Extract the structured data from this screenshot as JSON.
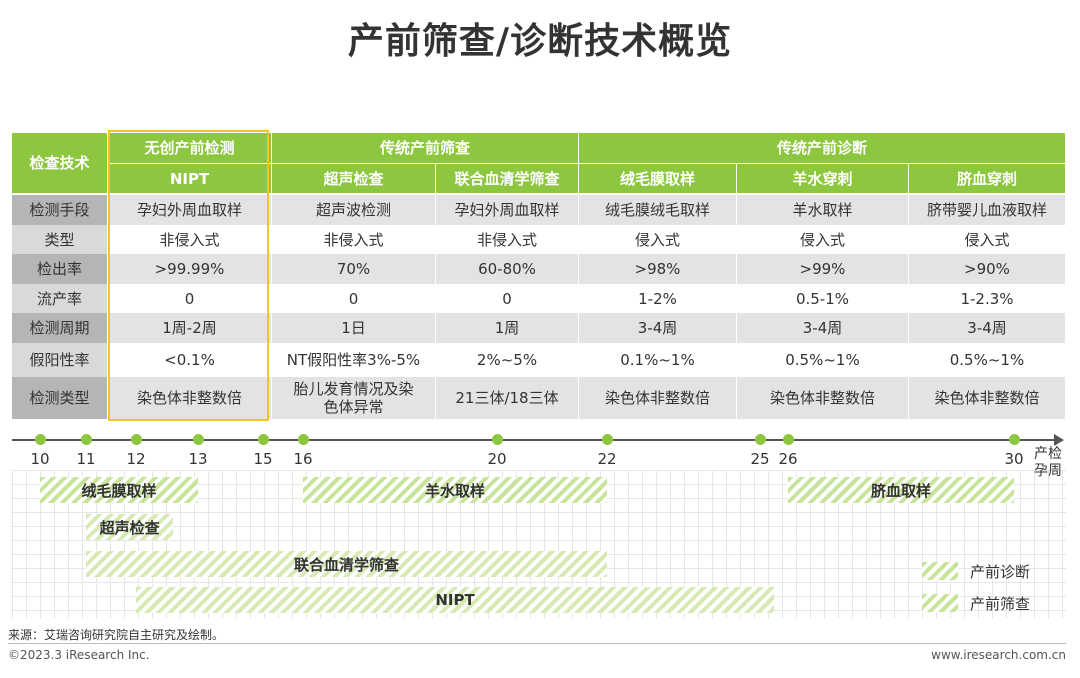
{
  "title": "产前筛查/诊断技术概览",
  "table": {
    "corner_label": "检查技术",
    "groups": [
      "无创产前检测",
      "传统产前筛查",
      "传统产前诊断"
    ],
    "techniques": [
      "NIPT",
      "超声检查",
      "联合血清学筛查",
      "绒毛膜取样",
      "羊水穿刺",
      "脐血穿刺"
    ],
    "rows": [
      {
        "label": "检测手段",
        "values": [
          "孕妇外周血取样",
          "超声波检测",
          "孕妇外周血取样",
          "绒毛膜绒毛取样",
          "羊水取样",
          "脐带婴儿血液取样"
        ]
      },
      {
        "label": "类型",
        "values": [
          "非侵入式",
          "非侵入式",
          "非侵入式",
          "侵入式",
          "侵入式",
          "侵入式"
        ]
      },
      {
        "label": "检出率",
        "values": [
          ">99.99%",
          "70%",
          "60-80%",
          ">98%",
          ">99%",
          ">90%"
        ]
      },
      {
        "label": "流产率",
        "values": [
          "0",
          "0",
          "0",
          "1-2%",
          "0.5-1%",
          "1-2.3%"
        ]
      },
      {
        "label": "检测周期",
        "values": [
          "1周-2周",
          "1日",
          "1周",
          "3-4周",
          "3-4周",
          "3-4周"
        ]
      },
      {
        "label": "假阳性率",
        "values": [
          "<0.1%",
          "NT假阳性率3%-5%",
          "2%~5%",
          "0.1%~1%",
          "0.5%~1%",
          "0.5%~1%"
        ]
      },
      {
        "label": "检测类型",
        "values": [
          "染色体非整数倍",
          "胎儿发育情况及染色体异常",
          "21三体/18三体",
          "染色体非整数倍",
          "染色体非整数倍",
          "染色体非整数倍"
        ]
      }
    ]
  },
  "timeline": {
    "axis_label_line1": "产检",
    "axis_label_line2": "孕周",
    "ticks": [
      10,
      11,
      12,
      13,
      15,
      16,
      20,
      22,
      25,
      26,
      30
    ],
    "bars": [
      {
        "label": "绒毛膜取样",
        "start": 10,
        "end": 13,
        "kind": "diagnosis"
      },
      {
        "label": "羊水取样",
        "start": 16,
        "end": 22,
        "kind": "diagnosis"
      },
      {
        "label": "脐血取样",
        "start": 26,
        "end": 30,
        "kind": "diagnosis"
      },
      {
        "label": "超声检查",
        "start": 11,
        "end": 12.6,
        "kind": "screening"
      },
      {
        "label": "联合血清学筛查",
        "start": 11,
        "end": 22,
        "kind": "screening"
      },
      {
        "label": "NIPT",
        "start": 12,
        "end": 25.5,
        "kind": "screening"
      }
    ],
    "legend": [
      "产前诊断",
      "产前筛查"
    ]
  },
  "footer": {
    "source": "来源：艾瑞咨询研究院自主研究及绘制。",
    "copyright": "©2023.3 iResearch Inc.",
    "website": "www.iresearch.com.cn"
  }
}
